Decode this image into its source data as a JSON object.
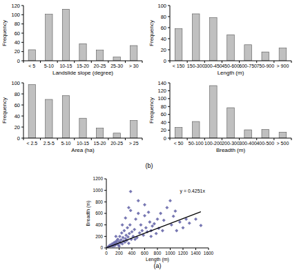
{
  "chart_data": [
    {
      "type": "bar",
      "xlabel": "Landslide slope (degree)",
      "ylabel": "Frequency",
      "categories": [
        "< 5",
        "5-10",
        "10-15",
        "15-20",
        "20-25",
        "25-30",
        "> 30"
      ],
      "values": [
        24,
        101,
        112,
        37,
        23,
        8,
        33
      ],
      "color": "#c0c0c0",
      "ylim": [
        0,
        120
      ],
      "yticks": [
        0,
        20,
        40,
        60,
        80,
        100,
        120
      ],
      "grid": false
    },
    {
      "type": "bar",
      "xlabel": "Length (m)",
      "ylabel": "Frequency",
      "categories": [
        "< 150",
        "150-300",
        "300-450",
        "450-600",
        "600-750",
        "750-900",
        "> 900"
      ],
      "values": [
        58,
        85,
        78,
        47,
        29,
        16,
        23
      ],
      "color": "#c0c0c0",
      "ylim": [
        0,
        100
      ],
      "yticks": [
        0,
        20,
        40,
        60,
        80,
        100
      ],
      "grid": false
    },
    {
      "type": "bar",
      "xlabel": "Area (ha)",
      "ylabel": "Frequency",
      "categories": [
        "< 2.5",
        "2.5-5",
        "5-10",
        "10-15",
        "15-20",
        "20-25",
        "> 25"
      ],
      "values": [
        97,
        70,
        77,
        36,
        18,
        9,
        32
      ],
      "color": "#c0c0c0",
      "ylim": [
        0,
        100
      ],
      "yticks": [
        0,
        20,
        40,
        60,
        80,
        100
      ],
      "grid": false
    },
    {
      "type": "bar",
      "xlabel": "Breadth (m)",
      "ylabel": "Frequency",
      "categories": [
        "< 50",
        "50-100",
        "100-200",
        "200-300",
        "300-400",
        "400-500",
        "> 500"
      ],
      "values": [
        27,
        42,
        133,
        77,
        21,
        22,
        15
      ],
      "color": "#c0c0c0",
      "ylim": [
        0,
        140
      ],
      "yticks": [
        0,
        20,
        40,
        60,
        80,
        100,
        120,
        140
      ],
      "grid": false
    },
    {
      "type": "scatter",
      "xlabel": "Length (m)",
      "ylabel": "Breadth (m)",
      "annotations": [
        "y = 0.4251x"
      ],
      "xlim": [
        0,
        1600
      ],
      "xticks": [
        0,
        200,
        400,
        600,
        800,
        1000,
        1200,
        1400,
        1600
      ],
      "ylim": [
        0,
        1200
      ],
      "yticks": [
        0,
        200,
        400,
        600,
        800,
        1000,
        1200
      ],
      "grid": false,
      "series": [
        {
          "type": "scatter",
          "marker": "diamond",
          "color": "#7676b4",
          "x": [
            20,
            40,
            50,
            60,
            80,
            90,
            100,
            110,
            120,
            130,
            140,
            150,
            160,
            170,
            180,
            190,
            200,
            210,
            220,
            230,
            240,
            250,
            260,
            270,
            280,
            290,
            300,
            310,
            320,
            330,
            340,
            350,
            360,
            370,
            380,
            390,
            400,
            420,
            440,
            460,
            480,
            500,
            520,
            540,
            560,
            580,
            600,
            620,
            640,
            660,
            680,
            700,
            720,
            750,
            780,
            800,
            820,
            850,
            880,
            900,
            950,
            1000,
            1020,
            1050,
            1080,
            1100,
            1150,
            1200,
            1250,
            1300,
            1400,
            1480,
            380,
            250,
            300,
            450,
            500,
            600,
            700,
            350,
            200,
            150
          ],
          "values": [
            10,
            30,
            20,
            50,
            40,
            70,
            30,
            60,
            90,
            40,
            100,
            60,
            120,
            80,
            150,
            50,
            110,
            200,
            90,
            140,
            260,
            70,
            180,
            120,
            300,
            100,
            160,
            220,
            130,
            350,
            190,
            80,
            250,
            400,
            980,
            150,
            280,
            200,
            320,
            500,
            180,
            820,
            260,
            400,
            300,
            220,
            560,
            350,
            280,
            620,
            450,
            300,
            380,
            420,
            250,
            500,
            340,
            600,
            300,
            480,
            700,
            820,
            400,
            550,
            640,
            300,
            450,
            350,
            500,
            430,
            500,
            390,
            650,
            400,
            520,
            150,
            600,
            750,
            200,
            700,
            30,
            200
          ]
        },
        {
          "type": "line",
          "line_style": "solid",
          "color": "#000000",
          "x": [
            0,
            1480
          ],
          "values": [
            0,
            629
          ]
        }
      ]
    }
  ],
  "captions": [
    "(b)",
    "(a)"
  ]
}
